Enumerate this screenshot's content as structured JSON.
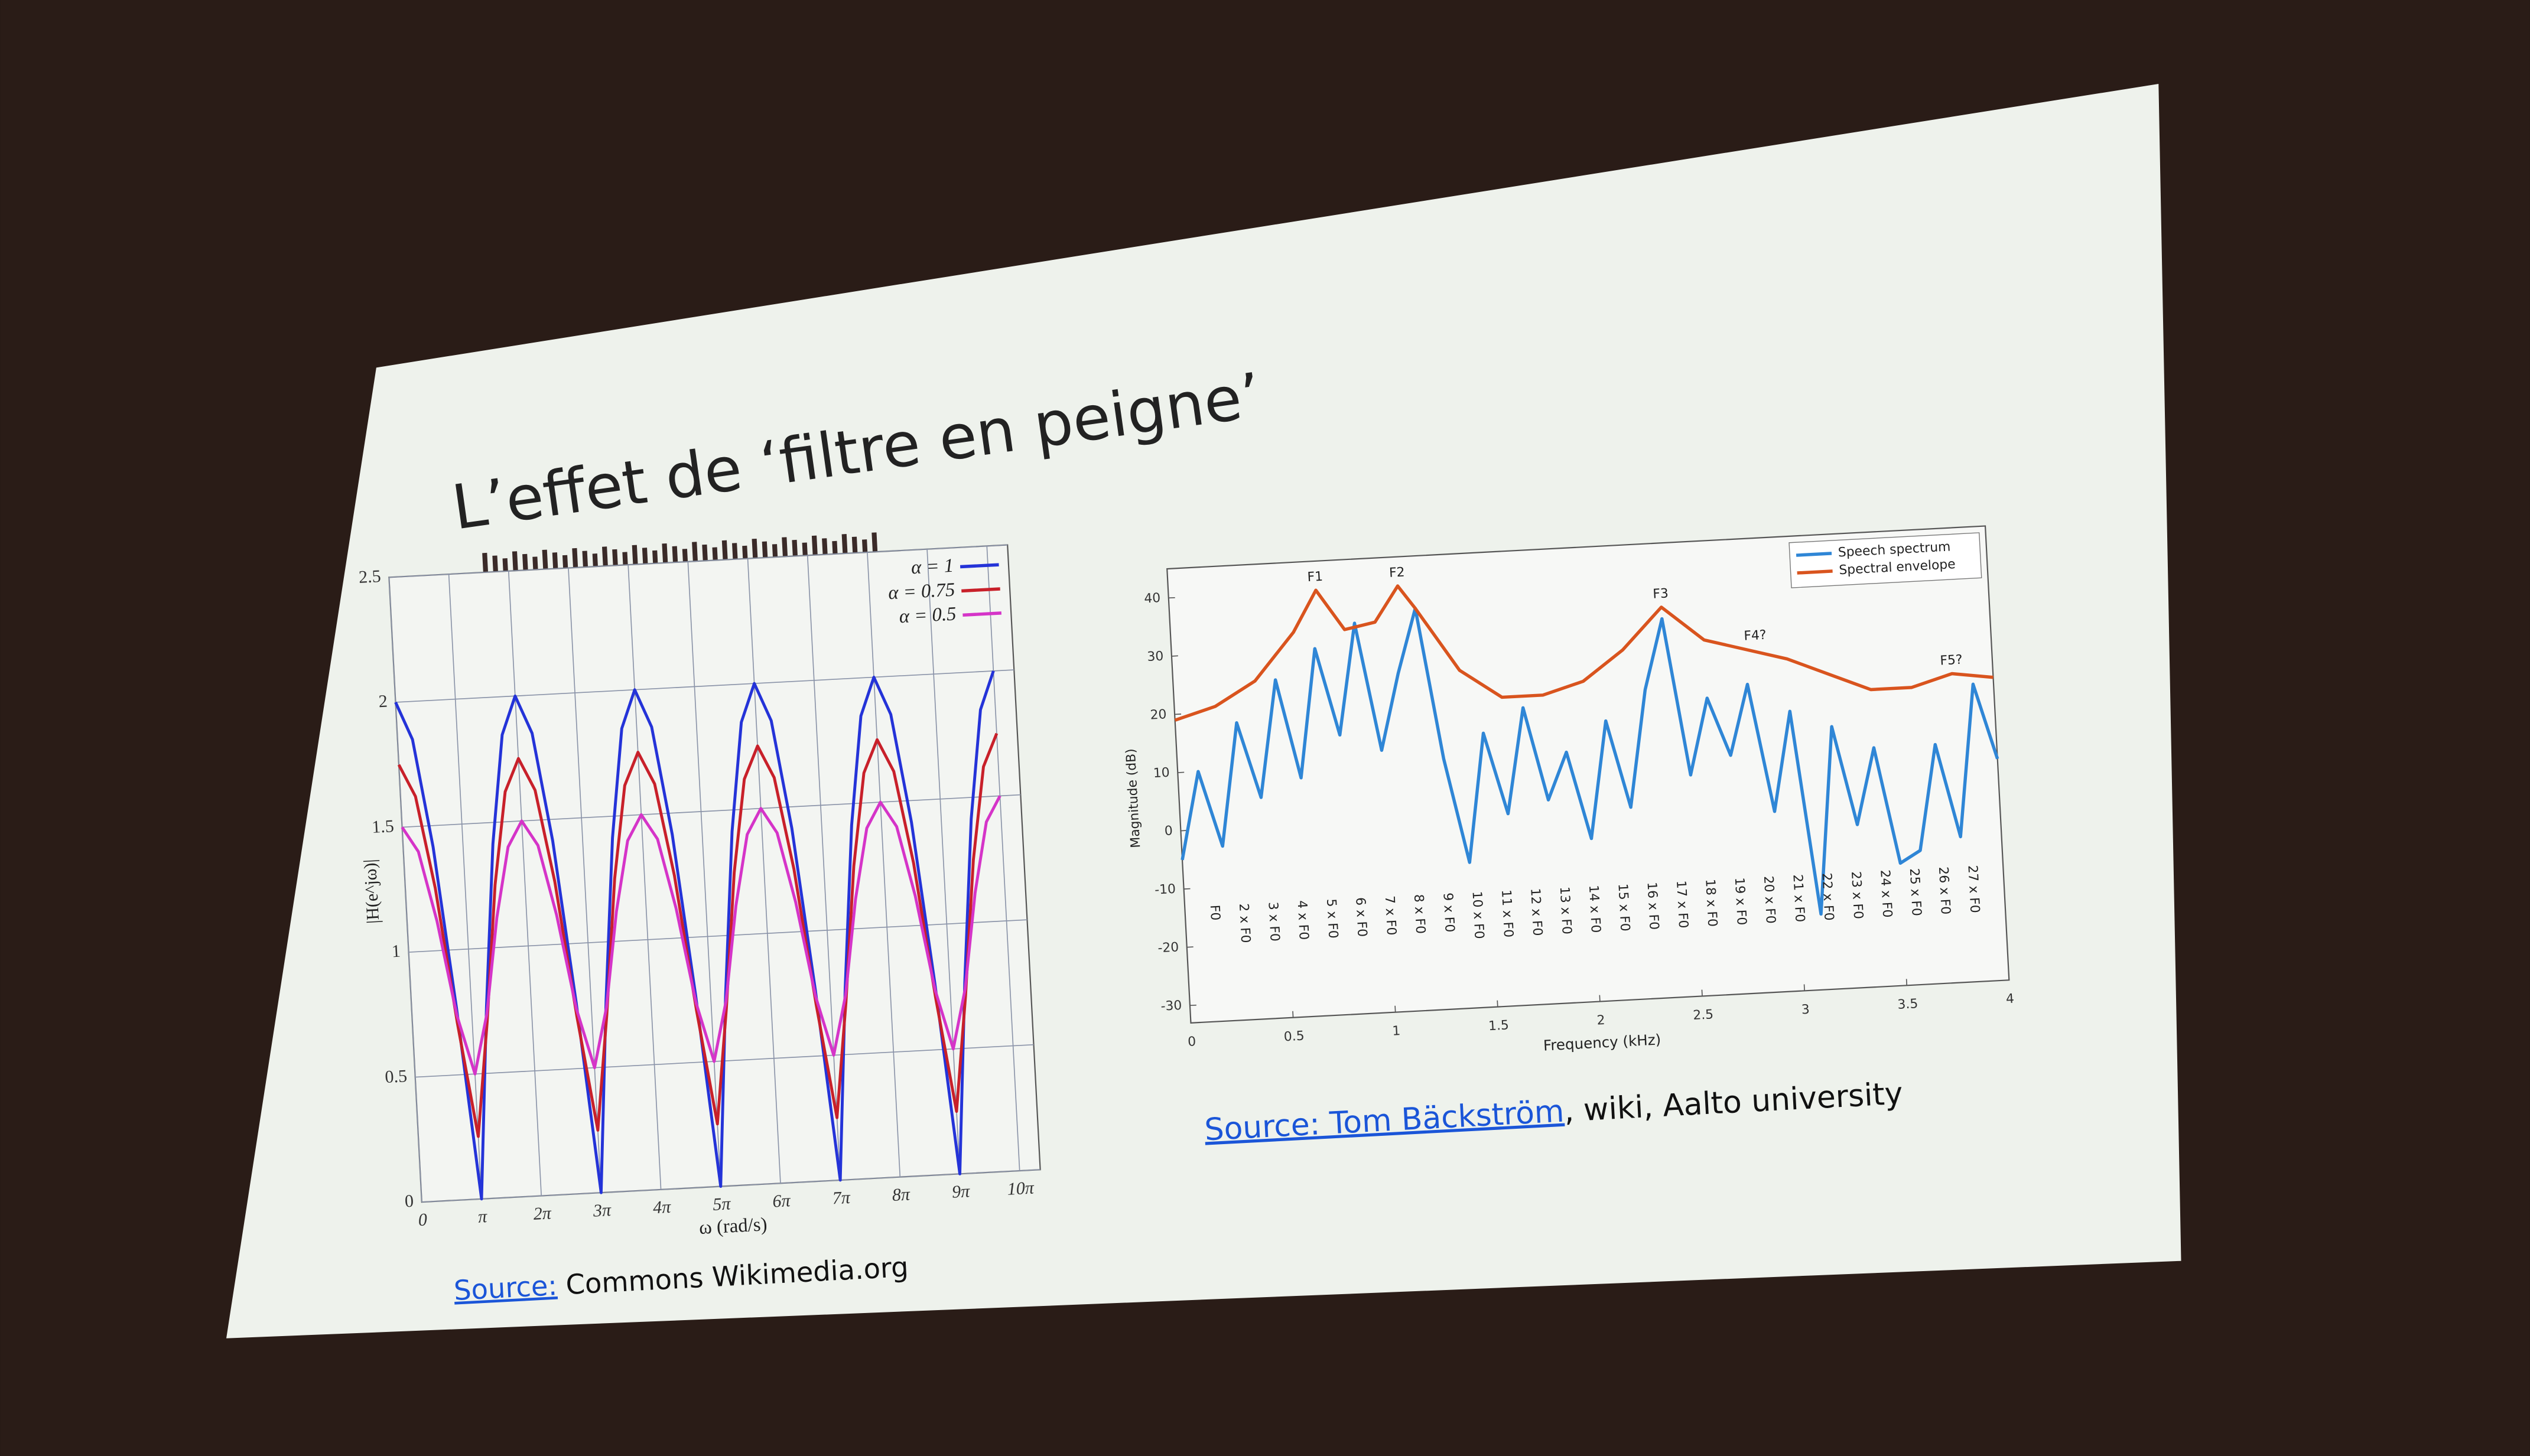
{
  "slide": {
    "title": "L’effet de ‘filtre en peigne’",
    "sources": [
      {
        "link": "Source:",
        "text": " Commons Wikimedia.org"
      },
      {
        "link": "Source: Tom Bäckström",
        "text": ", wiki, Aalto university"
      }
    ]
  },
  "chart_data": [
    {
      "type": "line",
      "xlabel": "ω (rad/s)",
      "ylabel": "|H(e^jω)|",
      "x": [
        0,
        0.785,
        1.571,
        2.356,
        3.142,
        3.927,
        4.712,
        5.498,
        6.283,
        7.069,
        7.854,
        8.639,
        9.425,
        10.21,
        10.996,
        11.781,
        12.566,
        13.352,
        14.137,
        14.923,
        15.708,
        16.493,
        17.279,
        18.064,
        18.85,
        19.635,
        20.42,
        21.206,
        21.991,
        22.777,
        23.562,
        24.347,
        25.133,
        25.918,
        26.704,
        27.489,
        28.274,
        29.06,
        29.845,
        30.631,
        31.416
      ],
      "series": [
        {
          "name": "α = 1",
          "color": "#2433d8",
          "values": [
            2,
            1.848,
            1.414,
            0.765,
            0,
            0.765,
            1.414,
            1.848,
            2,
            1.848,
            1.414,
            0.765,
            0,
            0.765,
            1.414,
            1.848,
            2,
            1.848,
            1.414,
            0.765,
            0,
            0.765,
            1.414,
            1.848,
            2,
            1.848,
            1.414,
            0.765,
            0,
            0.765,
            1.414,
            1.848,
            2,
            1.848,
            1.414,
            0.765,
            0,
            0.765,
            1.414,
            1.848,
            2
          ]
        },
        {
          "name": "α = 0.75",
          "color": "#c8202a",
          "values": [
            1.75,
            1.62,
            1.25,
            0.708,
            0.25,
            0.708,
            1.25,
            1.62,
            1.75,
            1.62,
            1.25,
            0.708,
            0.25,
            0.708,
            1.25,
            1.62,
            1.75,
            1.62,
            1.25,
            0.708,
            0.25,
            0.708,
            1.25,
            1.62,
            1.75,
            1.62,
            1.25,
            0.708,
            0.25,
            0.708,
            1.25,
            1.62,
            1.75,
            1.62,
            1.25,
            0.708,
            0.25,
            0.708,
            1.25,
            1.62,
            1.75
          ]
        },
        {
          "name": "α = 0.5",
          "color": "#d534c8",
          "values": [
            1.5,
            1.399,
            1.118,
            0.737,
            0.5,
            0.737,
            1.118,
            1.399,
            1.5,
            1.399,
            1.118,
            0.737,
            0.5,
            0.737,
            1.118,
            1.399,
            1.5,
            1.399,
            1.118,
            0.737,
            0.5,
            0.737,
            1.118,
            1.399,
            1.5,
            1.399,
            1.118,
            0.737,
            0.5,
            0.737,
            1.118,
            1.399,
            1.5,
            1.399,
            1.118,
            0.737,
            0.5,
            0.737,
            1.118,
            1.399,
            1.5
          ]
        }
      ],
      "xlim": [
        0,
        32.5
      ],
      "ylim": [
        0,
        2.5
      ],
      "xticks": [
        0,
        {
          "value": 3.1416,
          "label": "π"
        },
        {
          "value": 6.2832,
          "label": "2π"
        },
        {
          "value": 9.4248,
          "label": "3π"
        },
        {
          "value": 12.5664,
          "label": "4π"
        },
        {
          "value": 15.708,
          "label": "5π"
        },
        {
          "value": 18.8496,
          "label": "6π"
        },
        {
          "value": 21.9911,
          "label": "7π"
        },
        {
          "value": 25.1327,
          "label": "8π"
        },
        {
          "value": 28.2743,
          "label": "9π"
        },
        {
          "value": 31.4159,
          "label": "10π"
        }
      ],
      "yticks": [
        0,
        0.5,
        1,
        1.5,
        2,
        2.5
      ],
      "grid": true,
      "legend": "upper right"
    },
    {
      "type": "line",
      "xlabel": "Frequency (kHz)",
      "ylabel": "Magnitude (dB)",
      "series": [
        {
          "name": "Speech spectrum",
          "color": "#2f86d6",
          "x": [
            0,
            0.1,
            0.2,
            0.3,
            0.4,
            0.5,
            0.6,
            0.7,
            0.8,
            0.9,
            1,
            1.1,
            1.2,
            1.3,
            1.4,
            1.5,
            1.6,
            1.7,
            1.8,
            1.9,
            2,
            2.1,
            2.2,
            2.3,
            2.4,
            2.5,
            2.6,
            2.7,
            2.8,
            2.9,
            3,
            3.1,
            3.2,
            3.3,
            3.4,
            3.5,
            3.6,
            3.7,
            3.8,
            3.9,
            4
          ],
          "values": [
            -5,
            10,
            -3,
            18,
            5,
            25,
            8,
            30,
            15,
            34,
            12,
            25,
            36,
            10,
            -8,
            14,
            0,
            18,
            2,
            10,
            -5,
            15,
            0,
            20,
            32,
            5,
            18,
            8,
            20,
            -2,
            15,
            -20,
            12,
            -5,
            8,
            -12,
            -10,
            8,
            -8,
            18,
            5
          ]
        },
        {
          "name": "Spectral envelope",
          "color": "#d9541e",
          "x": [
            0,
            0.2,
            0.4,
            0.6,
            0.72,
            0.85,
            1,
            1.12,
            1.2,
            1.4,
            1.6,
            1.8,
            2,
            2.2,
            2.4,
            2.6,
            2.8,
            3,
            3.2,
            3.4,
            3.6,
            3.8,
            4
          ],
          "values": [
            19,
            21,
            25,
            33,
            40,
            33,
            34,
            40,
            36,
            25,
            20,
            20,
            22,
            27,
            34,
            28,
            26,
            24,
            21,
            18,
            18,
            20,
            19
          ]
        }
      ],
      "annotations": [
        {
          "label": "F1",
          "x": 0.72,
          "y": 40
        },
        {
          "label": "F2",
          "x": 1.12,
          "y": 40
        },
        {
          "label": "F3",
          "x": 2.4,
          "y": 34
        },
        {
          "label": "F4?",
          "x": 2.85,
          "y": 26
        },
        {
          "label": "F5?",
          "x": 3.8,
          "y": 20
        }
      ],
      "harmonics": [
        {
          "label": "F0",
          "x": 0.143
        },
        {
          "label": "2 x F0",
          "x": 0.285
        },
        {
          "label": "3 x F0",
          "x": 0.428
        },
        {
          "label": "4 x F0",
          "x": 0.57
        },
        {
          "label": "5 x F0",
          "x": 0.713
        },
        {
          "label": "6 x F0",
          "x": 0.855
        },
        {
          "label": "7 x F0",
          "x": 0.998
        },
        {
          "label": "8 x F0",
          "x": 1.14
        },
        {
          "label": "9 x F0",
          "x": 1.283
        },
        {
          "label": "10 x F0",
          "x": 1.425
        },
        {
          "label": "11 x F0",
          "x": 1.568
        },
        {
          "label": "12 x F0",
          "x": 1.71
        },
        {
          "label": "13 x F0",
          "x": 1.853
        },
        {
          "label": "14 x F0",
          "x": 1.995
        },
        {
          "label": "15 x F0",
          "x": 2.138
        },
        {
          "label": "16 x F0",
          "x": 2.28
        },
        {
          "label": "17 x F0",
          "x": 2.423
        },
        {
          "label": "18 x F0",
          "x": 2.565
        },
        {
          "label": "19 x F0",
          "x": 2.708
        },
        {
          "label": "20 x F0",
          "x": 2.85
        },
        {
          "label": "21 x F0",
          "x": 2.993
        },
        {
          "label": "22 x F0",
          "x": 3.135
        },
        {
          "label": "23 x F0",
          "x": 3.278
        },
        {
          "label": "24 x F0",
          "x": 3.42
        },
        {
          "label": "25 x F0",
          "x": 3.563
        },
        {
          "label": "26 x F0",
          "x": 3.705
        },
        {
          "label": "27 x F0",
          "x": 3.848
        }
      ],
      "xlim": [
        0,
        4
      ],
      "ylim": [
        -33,
        45
      ],
      "xticks": [
        0,
        0.5,
        1,
        1.5,
        2,
        2.5,
        3,
        3.5,
        4
      ],
      "yticks": [
        -30,
        -20,
        -10,
        0,
        10,
        20,
        30,
        40
      ],
      "grid": false,
      "legend": "upper right"
    }
  ]
}
